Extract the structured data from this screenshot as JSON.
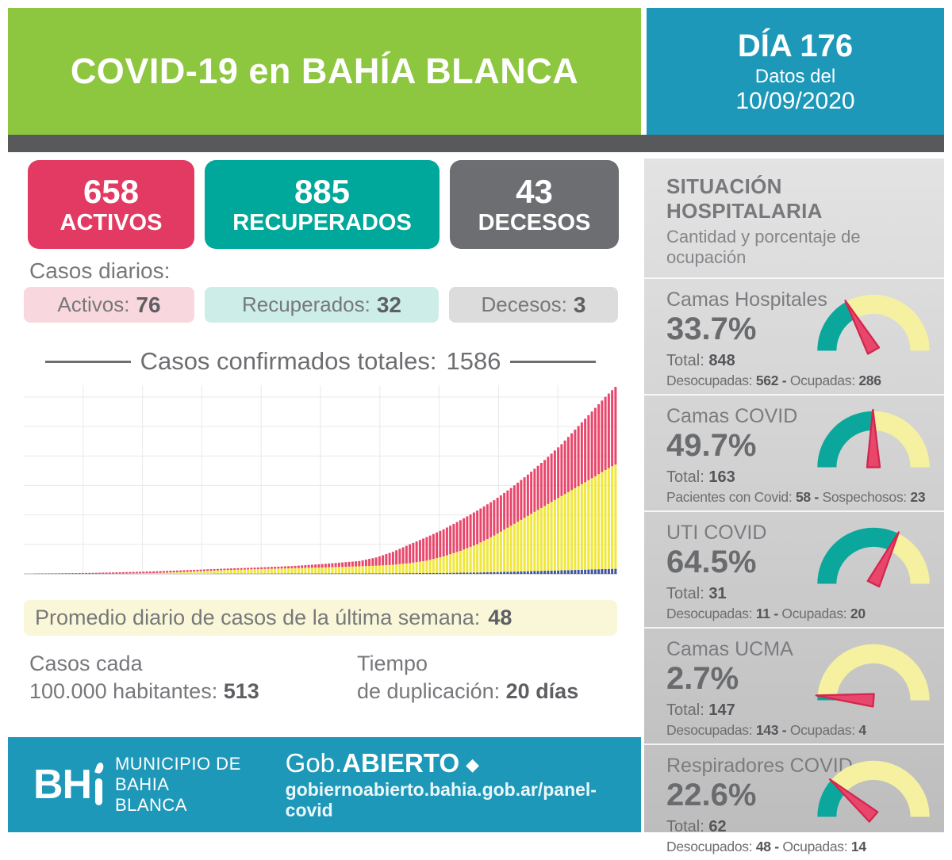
{
  "colors": {
    "green": "#8DC63F",
    "teal_header": "#1E98B9",
    "dark_strip": "#58595B",
    "text_gray": "#77787B"
  },
  "header": {
    "title": "COVID-19 en BAHÍA BLANCA",
    "day": "DÍA 176",
    "date_intro": "Datos del",
    "date": "10/09/2020"
  },
  "summary_boxes": [
    {
      "value": "658",
      "label": "ACTIVOS",
      "bg": "#E23A62"
    },
    {
      "value": "885",
      "label": "RECUPERADOS",
      "bg": "#00A79B"
    },
    {
      "value": "43",
      "label": "DECESOS",
      "bg": "#6D6E71"
    }
  ],
  "daily": {
    "heading": "Casos diarios:",
    "items": [
      {
        "label": "Activos:",
        "value": "76",
        "bg": "#F9D7DE"
      },
      {
        "label": "Recuperados:",
        "value": "32",
        "bg": "#CDEEE8"
      },
      {
        "label": "Decesos:",
        "value": "3",
        "bg": "#DCDCDC"
      }
    ]
  },
  "cases_title": {
    "label": "Casos confirmados totales:",
    "value": "1586"
  },
  "chart_data": {
    "type": "bar",
    "stacked": true,
    "title": "Casos confirmados totales: 1586",
    "x_meaning": "días desde el primer caso (1 a 176, 10/09/2020 al final)",
    "days_total": 176,
    "ylim": [
      0,
      1600
    ],
    "grid": true,
    "legend": "none",
    "series_order_bottom_to_top": [
      "decesos",
      "recuperados",
      "activos"
    ],
    "colors": {
      "activos": "#E8476B",
      "recuperados": "#F0E73C",
      "decesos": "#3B55A5"
    },
    "final_totals": {
      "activos": 658,
      "recuperados": 885,
      "decesos": 43,
      "total": 1586
    },
    "anchors": {
      "day": [
        1,
        10,
        20,
        30,
        40,
        50,
        60,
        70,
        80,
        90,
        100,
        105,
        110,
        115,
        120,
        125,
        130,
        135,
        140,
        145,
        150,
        155,
        160,
        165,
        170,
        173,
        176
      ],
      "activos": [
        1,
        4,
        8,
        12,
        15,
        14,
        12,
        14,
        18,
        30,
        45,
        70,
        110,
        160,
        200,
        230,
        260,
        285,
        300,
        320,
        350,
        390,
        440,
        510,
        580,
        620,
        658
      ],
      "recuperados": [
        0,
        0,
        0,
        2,
        6,
        18,
        30,
        38,
        45,
        52,
        60,
        65,
        72,
        85,
        105,
        140,
        185,
        240,
        310,
        390,
        470,
        550,
        630,
        710,
        790,
        840,
        885
      ],
      "decesos": [
        0,
        0,
        0,
        0,
        1,
        1,
        2,
        2,
        3,
        3,
        4,
        4,
        5,
        6,
        7,
        8,
        10,
        12,
        15,
        18,
        22,
        26,
        30,
        34,
        38,
        41,
        43
      ]
    }
  },
  "weekly_avg": {
    "label": "Promedio diario de casos de la última semana:",
    "value": "48",
    "bg": "#FAF7D8"
  },
  "rate_stats": {
    "left_line1": "Casos cada",
    "left_line2": "100.000 habitantes:",
    "left_value": "513",
    "right_line1": "Tiempo",
    "right_line2": "de duplicación:",
    "right_value": "20 días"
  },
  "footer": {
    "logo": "BH",
    "org_line1": "MUNICIPIO DE",
    "org_line2": "BAHIA BLANCA",
    "brand_regular": "Gob.",
    "brand_bold": "ABIERTO",
    "brand_diamond": "◆",
    "url": "gobiernoabierto.bahia.gob.ar/panel-covid"
  },
  "sidebar": {
    "title": "SITUACIÓN HOSPITALARIA",
    "subtitle": "Cantidad y porcentaje de ocupación",
    "sep": "-",
    "gauge_colors": {
      "track": "#F5F1A1",
      "fill": "#0BA79D",
      "needle": "#E8476B",
      "needle_stroke": "#D2274F"
    },
    "panels": [
      {
        "title": "Camas Hospitales",
        "pct": "33.7%",
        "pct_value": 33.7,
        "total_label": "Total:",
        "total_value": "848",
        "d1_label": "Desocupadas:",
        "d1_value": "562",
        "d2_label": "Ocupadas:",
        "d2_value": "286"
      },
      {
        "title": "Camas COVID",
        "pct": "49.7%",
        "pct_value": 49.7,
        "total_label": "Total:",
        "total_value": "163",
        "d1_label": "Pacientes con Covid:",
        "d1_value": "58",
        "d2_label": "Sospechosos:",
        "d2_value": "23"
      },
      {
        "title": "UTI COVID",
        "pct": "64.5%",
        "pct_value": 64.5,
        "total_label": "Total:",
        "total_value": "31",
        "d1_label": "Desocupadas:",
        "d1_value": "11",
        "d2_label": "Ocupadas:",
        "d2_value": "20"
      },
      {
        "title": "Camas UCMA",
        "pct": "2.7%",
        "pct_value": 2.7,
        "total_label": "Total:",
        "total_value": "147",
        "d1_label": "Desocupadas:",
        "d1_value": "143",
        "d2_label": "Ocupadas:",
        "d2_value": "4"
      },
      {
        "title": "Respiradores COVID",
        "pct": "22.6%",
        "pct_value": 22.6,
        "total_label": "Total:",
        "total_value": "62",
        "d1_label": "Desocupados:",
        "d1_value": "48",
        "d2_label": "Ocupadas:",
        "d2_value": "14"
      }
    ]
  }
}
